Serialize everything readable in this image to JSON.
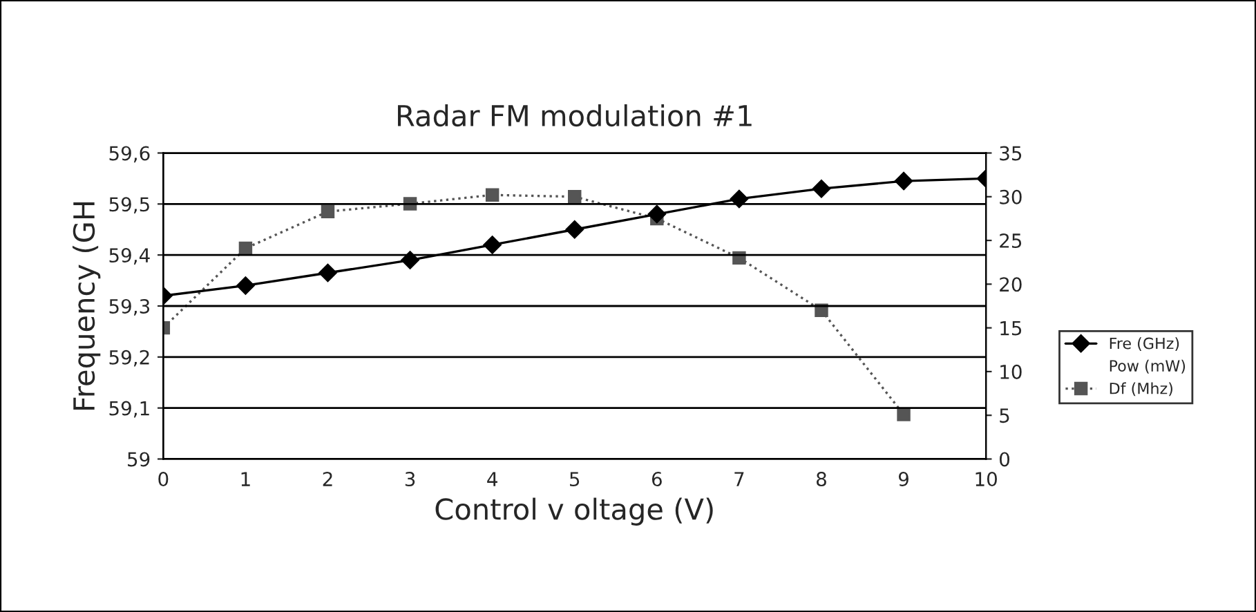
{
  "chart_data": {
    "type": "line",
    "title": "Radar FM modulation #1",
    "xlabel": "Control v oltage (V)",
    "ylabel": "Frequency (GH",
    "x": [
      0,
      1,
      2,
      3,
      4,
      5,
      6,
      7,
      8,
      9,
      10
    ],
    "xlim": [
      0,
      10
    ],
    "xticks": [
      0,
      1,
      2,
      3,
      4,
      5,
      6,
      7,
      8,
      9,
      10
    ],
    "ylim": [
      59,
      59.6
    ],
    "yticks": [
      {
        "value": 59,
        "label": "59"
      },
      {
        "value": 59.1,
        "label": "59,1"
      },
      {
        "value": 59.2,
        "label": "59,2"
      },
      {
        "value": 59.3,
        "label": "59,3"
      },
      {
        "value": 59.4,
        "label": "59,4"
      },
      {
        "value": 59.5,
        "label": "59,5"
      },
      {
        "value": 59.6,
        "label": "59,6"
      }
    ],
    "y2lim": [
      0,
      35
    ],
    "y2ticks": [
      0,
      5,
      10,
      15,
      20,
      25,
      30,
      35
    ],
    "grid": "y",
    "legend": "right",
    "series": [
      {
        "name": "Fre (GHz)",
        "color": "#000000",
        "marker": "diamond",
        "line_style": "solid",
        "values": [
          59.32,
          59.34,
          59.365,
          59.39,
          59.42,
          59.45,
          59.48,
          59.51,
          59.53,
          59.545,
          59.55
        ]
      },
      {
        "name": "Pow (mW)",
        "marker": "none",
        "line_style": "none",
        "axis": "y2",
        "values": [
          null,
          null,
          null,
          null,
          null,
          null,
          null,
          null,
          null,
          null,
          null
        ]
      },
      {
        "name": "Df (Mhz)",
        "color": "#555555",
        "marker": "square",
        "line_style": "dotted",
        "axis": "y2",
        "values": [
          15,
          24.1,
          28.3,
          29.2,
          30.2,
          30,
          27.5,
          23,
          17,
          5.1,
          null
        ]
      }
    ]
  }
}
